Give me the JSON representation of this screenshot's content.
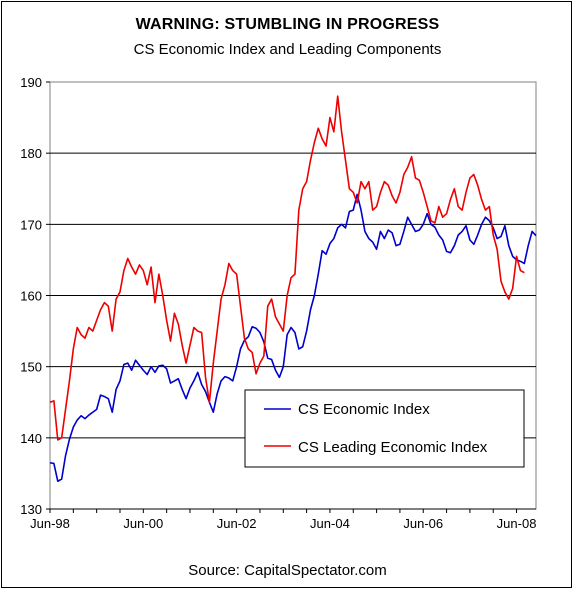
{
  "chart_data": {
    "type": "line",
    "title": "WARNING: STUMBLING IN PROGRESS",
    "subtitle": "CS Economic Index and Leading Components",
    "source": "Source: CapitalSpectator.com",
    "xlabel": "",
    "ylabel": "",
    "ylim": [
      130,
      190
    ],
    "yticks": [
      130,
      140,
      150,
      160,
      170,
      180,
      190
    ],
    "x_start": "1998-06",
    "x_end": "2008-06",
    "xticks": [
      "Jun-98",
      "Jun-00",
      "Jun-02",
      "Jun-04",
      "Jun-06",
      "Jun-08"
    ],
    "xtick_positions": [
      0,
      24,
      48,
      72,
      96,
      120
    ],
    "grid": "horizontal",
    "legend_position": "lower-right",
    "series": [
      {
        "name": "CS Economic Index",
        "color": "#0000CC",
        "values": [
          136.5,
          136.4,
          133.9,
          134.2,
          137.5,
          139.8,
          141.5,
          142.5,
          143.1,
          142.7,
          143.2,
          143.6,
          144.0,
          146.0,
          145.8,
          145.5,
          143.6,
          146.8,
          148.0,
          150.3,
          150.5,
          149.5,
          150.9,
          150.2,
          149.5,
          148.9,
          150.0,
          149.2,
          150.1,
          150.2,
          149.7,
          147.7,
          148.0,
          148.3,
          146.8,
          145.5,
          147.0,
          148.0,
          149.2,
          147.5,
          146.5,
          145.0,
          143.6,
          146.2,
          148.0,
          148.6,
          148.4,
          148.0,
          150.0,
          152.5,
          153.7,
          154.2,
          155.6,
          155.4,
          154.8,
          153.5,
          151.2,
          151.0,
          149.5,
          148.5,
          150.0,
          154.5,
          155.5,
          154.8,
          152.5,
          152.8,
          155.0,
          158.0,
          160.0,
          163.0,
          166.3,
          165.8,
          167.3,
          168.0,
          169.5,
          170.0,
          169.5,
          171.8,
          172.0,
          174.2,
          172.0,
          169.0,
          168.0,
          167.5,
          166.5,
          169.0,
          168.0,
          169.2,
          168.8,
          167.0,
          167.2,
          169.0,
          171.0,
          170.0,
          169.0,
          169.2,
          170.0,
          171.5,
          170.0,
          169.6,
          168.5,
          167.8,
          166.2,
          166.0,
          167.0,
          168.5,
          169.0,
          169.8,
          167.8,
          167.2,
          168.5,
          170.0,
          171.0,
          170.5,
          169.5,
          168.0,
          168.3,
          169.8,
          167.0,
          165.5,
          165.0,
          164.8,
          164.5,
          167.0,
          169.0,
          168.4
        ]
      },
      {
        "name": "CS Leading Economic Index",
        "color": "#EE0000",
        "values": [
          145.0,
          145.2,
          139.7,
          140.0,
          144.0,
          148.0,
          152.5,
          155.5,
          154.5,
          154.0,
          155.5,
          155.0,
          156.5,
          158.0,
          159.0,
          158.5,
          155.0,
          159.5,
          160.5,
          163.5,
          165.2,
          164.0,
          163.0,
          164.3,
          163.5,
          161.5,
          164.0,
          159.0,
          163.0,
          160.0,
          156.5,
          153.6,
          157.5,
          156.0,
          153.0,
          150.5,
          153.0,
          155.5,
          155.0,
          154.8,
          148.5,
          145.0,
          150.5,
          155.0,
          159.5,
          161.5,
          164.5,
          163.5,
          163.0,
          158.5,
          154.0,
          152.5,
          152.0,
          149.0,
          150.5,
          151.5,
          158.5,
          159.5,
          157.0,
          156.0,
          155.0,
          160.0,
          162.5,
          163.0,
          172.0,
          175.0,
          176.0,
          179.0,
          181.5,
          183.5,
          182.0,
          181.0,
          185.0,
          183.0,
          188.0,
          183.0,
          179.0,
          175.0,
          174.5,
          173.0,
          176.0,
          175.0,
          176.0,
          172.0,
          172.5,
          174.5,
          176.0,
          175.5,
          174.0,
          173.0,
          174.5,
          177.0,
          178.0,
          179.5,
          176.5,
          176.2,
          174.5,
          172.5,
          170.5,
          170.2,
          172.5,
          171.0,
          171.5,
          173.5,
          175.0,
          172.5,
          172.0,
          174.5,
          176.5,
          177.0,
          175.5,
          173.5,
          172.0,
          172.5,
          168.5,
          166.5,
          162.0,
          160.5,
          159.5,
          161.0,
          165.5,
          163.5,
          163.2
        ]
      }
    ]
  }
}
